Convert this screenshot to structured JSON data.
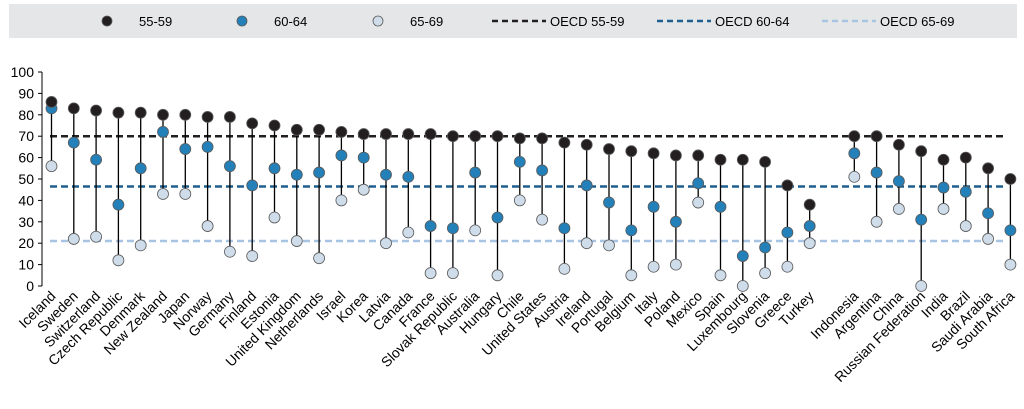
{
  "chart_data": {
    "type": "scatter",
    "title": "",
    "xlabel": "",
    "ylabel": "",
    "ylim": [
      0,
      100
    ],
    "yticks": [
      0,
      10,
      20,
      30,
      40,
      50,
      60,
      70,
      80,
      90,
      100
    ],
    "gridlines": false,
    "legend_position": "top",
    "categories": [
      "Iceland",
      "Sweden",
      "Switzerland",
      "Czech Republic",
      "Denmark",
      "New Zealand",
      "Japan",
      "Norway",
      "Germany",
      "Finland",
      "Estonia",
      "United Kingdom",
      "Netherlands",
      "Israel",
      "Korea",
      "Latvia",
      "Canada",
      "France",
      "Slovak Republic",
      "Australia",
      "Hungary",
      "Chile",
      "United States",
      "Austria",
      "Ireland",
      "Portugal",
      "Belgium",
      "Italy",
      "Poland",
      "Mexico",
      "Spain",
      "Luxembourg",
      "Slovenia",
      "Greece",
      "Turkey",
      "",
      "Indonesia",
      "Argentina",
      "China",
      "Russian Federation",
      "India",
      "Brazil",
      "Saudi Arabia",
      "South Africa"
    ],
    "series": [
      {
        "name": "55-59",
        "color": "#231f20",
        "values": [
          86,
          83,
          82,
          81,
          81,
          80,
          80,
          79,
          79,
          76,
          75,
          73,
          73,
          72,
          71,
          71,
          71,
          71,
          70,
          70,
          70,
          69,
          69,
          67,
          66,
          64,
          63,
          62,
          61,
          61,
          59,
          59,
          58,
          47,
          38,
          null,
          70,
          70,
          66,
          63,
          59,
          60,
          55,
          50
        ]
      },
      {
        "name": "60-64",
        "color": "#2480b8",
        "values": [
          83,
          67,
          59,
          38,
          55,
          72,
          64,
          65,
          56,
          47,
          55,
          52,
          53,
          61,
          60,
          52,
          51,
          28,
          27,
          53,
          32,
          58,
          54,
          27,
          47,
          39,
          26,
          37,
          30,
          48,
          37,
          14,
          18,
          25,
          28,
          null,
          62,
          53,
          49,
          31,
          46,
          44,
          34,
          26
        ]
      },
      {
        "name": "65-69",
        "color": "#cfdcea",
        "values": [
          56,
          22,
          23,
          12,
          19,
          43,
          43,
          28,
          16,
          14,
          32,
          21,
          13,
          40,
          45,
          20,
          25,
          6,
          6,
          26,
          5,
          40,
          31,
          8,
          20,
          19,
          5,
          9,
          10,
          39,
          5,
          0,
          6,
          9,
          20,
          null,
          51,
          30,
          36,
          0,
          36,
          28,
          22,
          10
        ]
      }
    ],
    "reference_lines": [
      {
        "name": "OECD 55-59",
        "value": 70,
        "color": "#231f20"
      },
      {
        "name": "OECD 60-64",
        "value": 46.5,
        "color": "#1f5f8e"
      },
      {
        "name": "OECD 65-69",
        "value": 21,
        "color": "#a7c4e2"
      }
    ]
  }
}
